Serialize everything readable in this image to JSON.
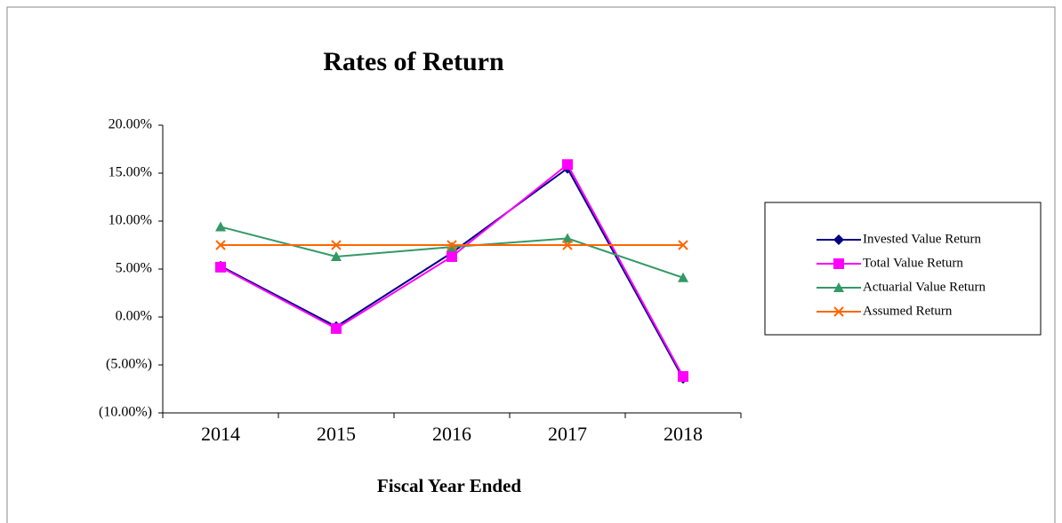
{
  "chart_data": {
    "type": "line",
    "title": "Rates of Return",
    "x_label": "Fiscal Year Ended",
    "categories": [
      "2014",
      "2015",
      "2016",
      "2017",
      "2018"
    ],
    "series": [
      {
        "name": "Invested Value Return",
        "color": "#000080",
        "marker": "diamond",
        "values": [
          5.3,
          -1.0,
          6.7,
          15.5,
          -6.4
        ]
      },
      {
        "name": "Total Value Return",
        "color": "#ff00ff",
        "marker": "square",
        "values": [
          5.2,
          -1.2,
          6.3,
          15.9,
          -6.2
        ]
      },
      {
        "name": "Actuarial Value Return",
        "color": "#339966",
        "marker": "triangle",
        "values": [
          9.4,
          6.3,
          7.3,
          8.2,
          4.1
        ]
      },
      {
        "name": "Assumed Return",
        "color": "#ff6600",
        "marker": "x",
        "values": [
          7.5,
          7.5,
          7.5,
          7.5,
          7.5
        ]
      }
    ],
    "ylim": [
      -10,
      20
    ],
    "yticks": [
      {
        "value": -10,
        "label": "(10.00%)"
      },
      {
        "value": -5,
        "label": "(5.00%)"
      },
      {
        "value": 0,
        "label": "0.00%"
      },
      {
        "value": 5,
        "label": "5.00%"
      },
      {
        "value": 10,
        "label": "10.00%"
      },
      {
        "value": 15,
        "label": "15.00%"
      },
      {
        "value": 20,
        "label": "20.00%"
      }
    ],
    "grid": false,
    "legend": "right"
  }
}
